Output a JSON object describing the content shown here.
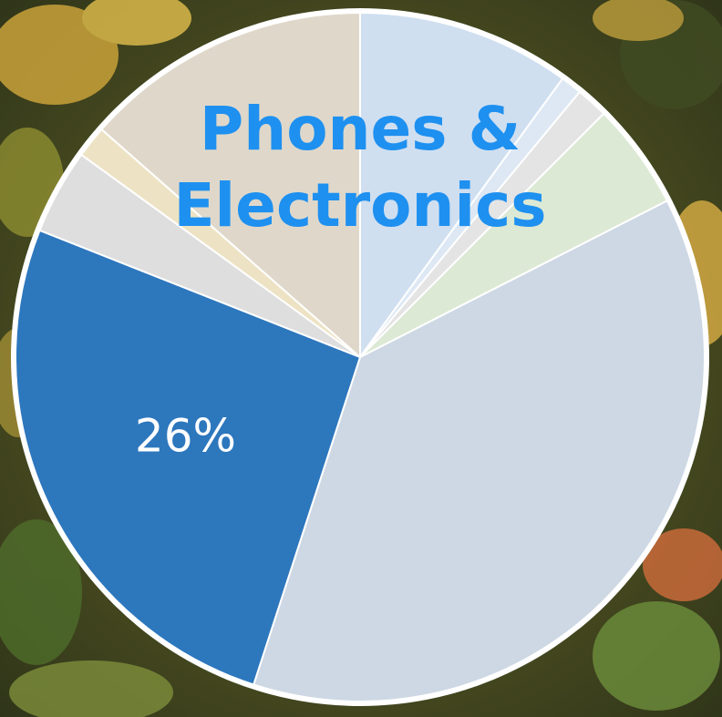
{
  "chart_data": {
    "type": "pie",
    "title": "Phones & Electronics",
    "categories": [
      null,
      null,
      null,
      null,
      null,
      null,
      null,
      null,
      null
    ],
    "values": [
      10,
      1,
      1.5,
      5,
      37.5,
      26,
      4,
      1.5,
      13.5
    ],
    "value_labels": [
      null,
      null,
      null,
      null,
      null,
      "26%",
      null,
      null,
      null
    ],
    "colors": [
      "#cfdff0",
      "#dde8f4",
      "#e4e4e4",
      "#dce9d4",
      "#cdd8e4",
      "#2d77bd",
      "#dedede",
      "#ede3c4",
      "#dfd8ca"
    ]
  }
}
